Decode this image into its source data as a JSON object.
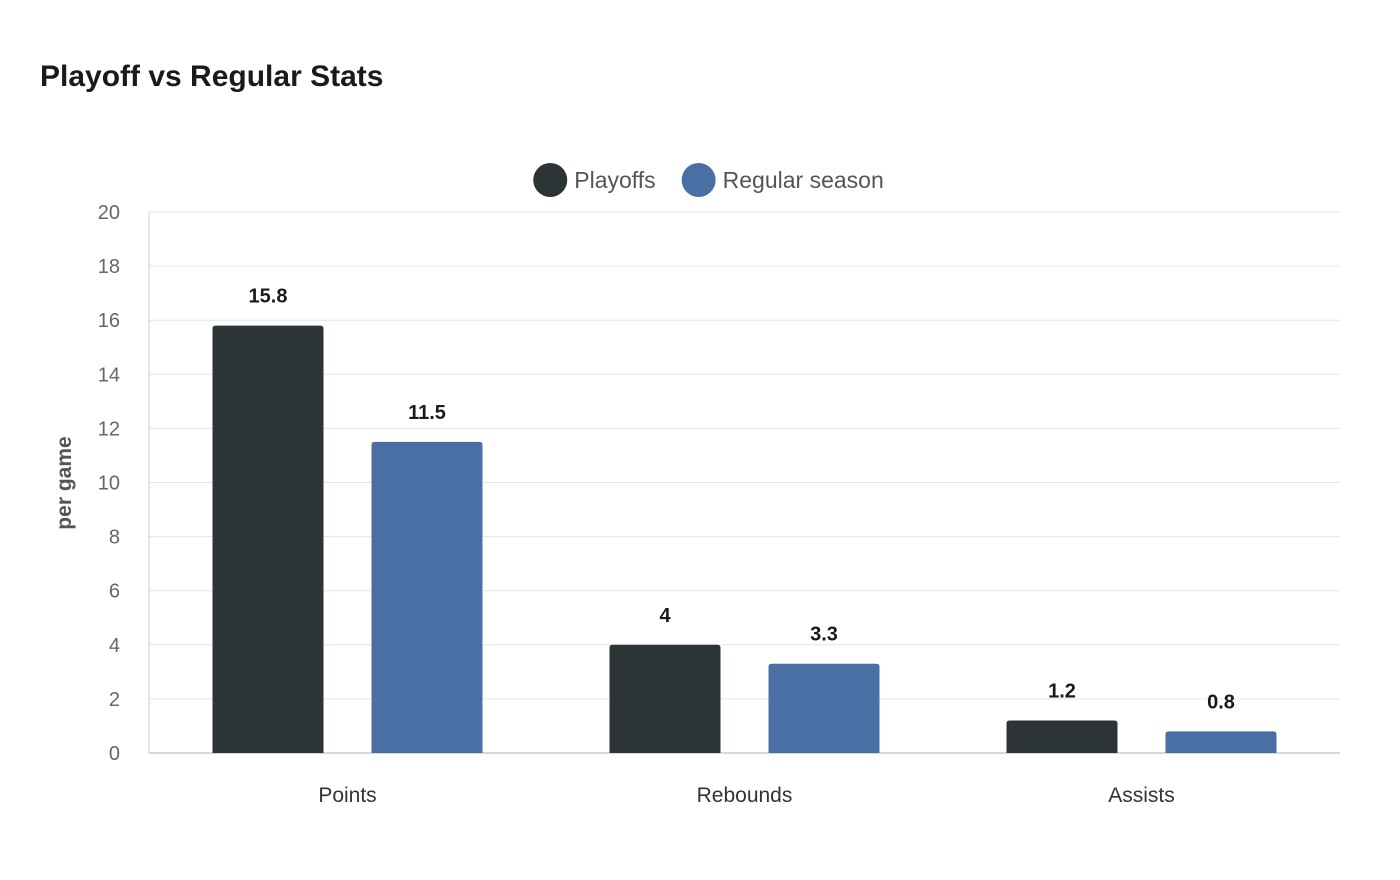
{
  "chart_data": {
    "type": "bar",
    "title": "Playoff vs Regular Stats",
    "xlabel": "",
    "ylabel": "per game",
    "ylim": [
      0,
      20
    ],
    "y_ticks": [
      0,
      2,
      4,
      6,
      8,
      10,
      12,
      14,
      16,
      18,
      20
    ],
    "grid": true,
    "legend_position": "top-center",
    "categories": [
      "Points",
      "Rebounds",
      "Assists"
    ],
    "series": [
      {
        "name": "Playoffs",
        "color": "#2d3436",
        "values": [
          15.8,
          4,
          1.2
        ]
      },
      {
        "name": "Regular season",
        "color": "#4a6fa5",
        "values": [
          11.5,
          3.3,
          0.8
        ]
      }
    ]
  }
}
